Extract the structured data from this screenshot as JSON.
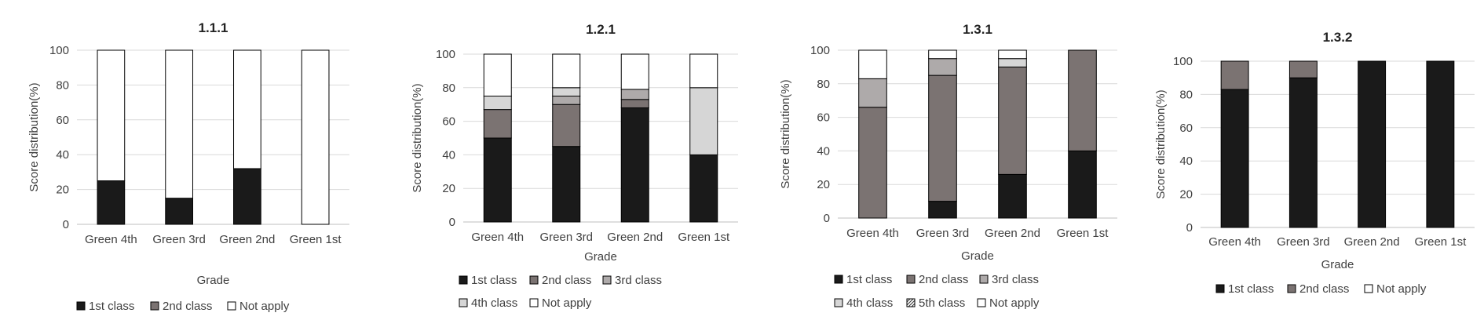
{
  "chart_data": [
    {
      "type": "bar",
      "stacked": true,
      "title": "1.1.1",
      "xlabel": "Grade",
      "ylabel": "Score distribution(%)",
      "ylim": [
        0,
        100
      ],
      "yticks": [
        0,
        20,
        40,
        60,
        80,
        100
      ],
      "grid": true,
      "legend_position": "bottom",
      "categories": [
        "Green 4th",
        "Green 3rd",
        "Green 2nd",
        "Green 1st"
      ],
      "series": [
        {
          "name": "1st class",
          "color": "#1a1a1a",
          "values": [
            25,
            15,
            32,
            0
          ]
        },
        {
          "name": "2nd class",
          "color": "#7b7372",
          "values": [
            0,
            0,
            0,
            0
          ]
        },
        {
          "name": "Not apply",
          "color": "#ffffff",
          "values": [
            75,
            85,
            68,
            100
          ]
        }
      ]
    },
    {
      "type": "bar",
      "stacked": true,
      "title": "1.2.1",
      "xlabel": "Grade",
      "ylabel": "Score distribution(%)",
      "ylim": [
        0,
        100
      ],
      "yticks": [
        0,
        20,
        40,
        60,
        80,
        100
      ],
      "grid": true,
      "legend_position": "bottom",
      "categories": [
        "Green 4th",
        "Green 3rd",
        "Green 2nd",
        "Green 1st"
      ],
      "series": [
        {
          "name": "1st class",
          "color": "#1a1a1a",
          "values": [
            50,
            45,
            68,
            40
          ]
        },
        {
          "name": "2nd class",
          "color": "#7b7372",
          "values": [
            17,
            25,
            5,
            0
          ]
        },
        {
          "name": "3rd class",
          "color": "#aeaaaa",
          "values": [
            0,
            5,
            6,
            0
          ]
        },
        {
          "name": "4th class",
          "color": "#d6d6d6",
          "values": [
            8,
            5,
            0,
            40
          ]
        },
        {
          "name": "Not apply",
          "color": "#ffffff",
          "values": [
            25,
            20,
            21,
            20
          ]
        }
      ]
    },
    {
      "type": "bar",
      "stacked": true,
      "title": "1.3.1",
      "xlabel": "Grade",
      "ylabel": "Score distribution(%)",
      "ylim": [
        0,
        100
      ],
      "yticks": [
        0,
        20,
        40,
        60,
        80,
        100
      ],
      "grid": true,
      "legend_position": "bottom",
      "categories": [
        "Green 4th",
        "Green 3rd",
        "Green 2nd",
        "Green 1st"
      ],
      "series": [
        {
          "name": "1st class",
          "color": "#1a1a1a",
          "values": [
            0,
            10,
            26,
            40
          ]
        },
        {
          "name": "2nd class",
          "color": "#7b7372",
          "values": [
            66,
            75,
            64,
            60
          ]
        },
        {
          "name": "3rd class",
          "color": "#aeaaaa",
          "values": [
            17,
            10,
            0,
            0
          ]
        },
        {
          "name": "4th class",
          "color": "#d6d6d6",
          "values": [
            0,
            0,
            5,
            0
          ]
        },
        {
          "name": "5th class",
          "color": "#ffffff",
          "hatch": true,
          "values": [
            0,
            0,
            0,
            0
          ]
        },
        {
          "name": "Not apply",
          "color": "#ffffff",
          "values": [
            17,
            5,
            5,
            0
          ]
        }
      ]
    },
    {
      "type": "bar",
      "stacked": true,
      "title": "1.3.2",
      "xlabel": "Grade",
      "ylabel": "Score distribution(%)",
      "ylim": [
        0,
        100
      ],
      "yticks": [
        0,
        20,
        40,
        60,
        80,
        100
      ],
      "grid": true,
      "legend_position": "bottom",
      "categories": [
        "Green 4th",
        "Green 3rd",
        "Green 2nd",
        "Green 1st"
      ],
      "series": [
        {
          "name": "1st class",
          "color": "#1a1a1a",
          "values": [
            83,
            90,
            100,
            100
          ]
        },
        {
          "name": "2nd class",
          "color": "#7b7372",
          "values": [
            17,
            10,
            0,
            0
          ]
        },
        {
          "name": "Not apply",
          "color": "#ffffff",
          "values": [
            0,
            0,
            0,
            0
          ]
        }
      ]
    }
  ]
}
